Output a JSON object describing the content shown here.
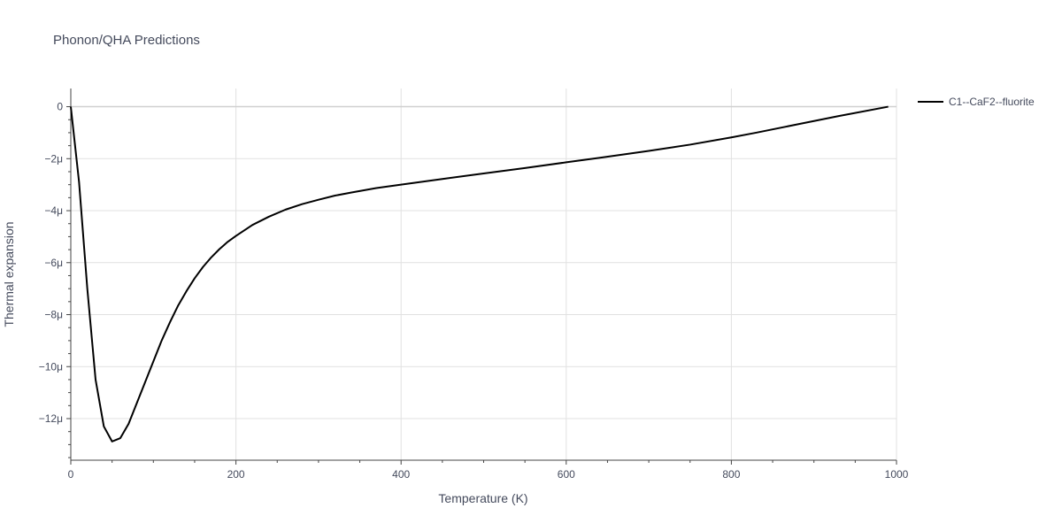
{
  "chart_data": {
    "type": "line",
    "title": "Phonon/QHA Predictions",
    "xlabel": "Temperature (K)",
    "ylabel": "Thermal expansion",
    "xlim": [
      0,
      1000
    ],
    "ylim": [
      -13.6,
      0.7
    ],
    "y_unit_suffix": "μ",
    "x_ticks": [
      0,
      200,
      400,
      600,
      800,
      1000
    ],
    "y_ticks": [
      0,
      -2,
      -4,
      -6,
      -8,
      -10,
      -12
    ],
    "y_tick_labels": [
      "0",
      "−2μ",
      "−4μ",
      "−6μ",
      "−8μ",
      "−10μ",
      "−12μ"
    ],
    "grid": true,
    "legend_position": "top-right",
    "series": [
      {
        "name": "C1--CaF2--fluorite",
        "color": "#000000",
        "x": [
          0,
          10,
          20,
          30,
          40,
          50,
          60,
          70,
          80,
          90,
          100,
          110,
          120,
          130,
          140,
          150,
          160,
          170,
          180,
          190,
          200,
          220,
          240,
          260,
          280,
          300,
          320,
          340,
          370,
          400,
          450,
          500,
          550,
          600,
          640,
          700,
          750,
          800,
          830,
          880,
          930,
          990
        ],
        "y": [
          0,
          -2.9,
          -7.0,
          -10.5,
          -12.3,
          -12.88,
          -12.75,
          -12.2,
          -11.4,
          -10.6,
          -9.8,
          -9.0,
          -8.3,
          -7.65,
          -7.1,
          -6.6,
          -6.17,
          -5.8,
          -5.48,
          -5.2,
          -4.97,
          -4.55,
          -4.23,
          -3.96,
          -3.75,
          -3.58,
          -3.42,
          -3.3,
          -3.13,
          -3.0,
          -2.78,
          -2.57,
          -2.36,
          -2.14,
          -1.97,
          -1.7,
          -1.46,
          -1.18,
          -1.0,
          -0.68,
          -0.36,
          0
        ]
      }
    ]
  }
}
